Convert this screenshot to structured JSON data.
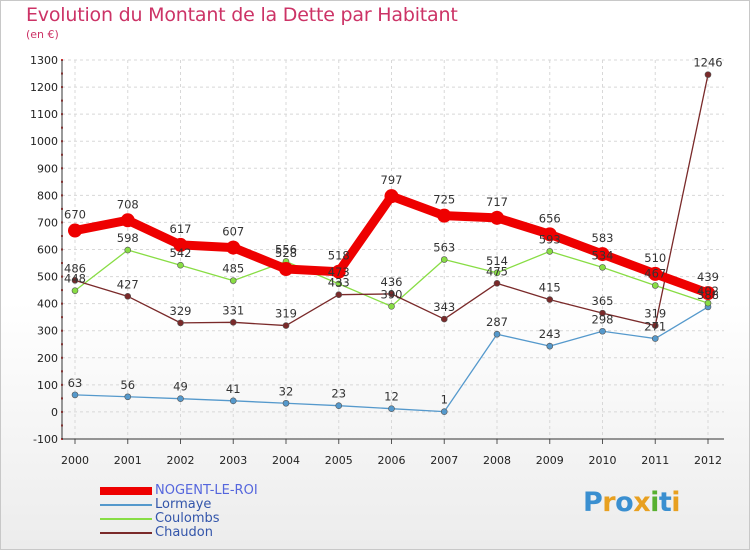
{
  "title": "Evolution du Montant de la Dette par Habitant",
  "subtitle": "(en €)",
  "logo": {
    "letters": [
      "P",
      "r",
      "o",
      "x",
      "i",
      "t",
      "i"
    ],
    "colors": [
      "#3a8fd0",
      "#e8a020",
      "#3a8fd0",
      "#e8a020",
      "#58b030",
      "#3a8fd0",
      "#e8a020"
    ]
  },
  "chart_data": {
    "type": "line",
    "x": [
      "2000",
      "2001",
      "2002",
      "2003",
      "2004",
      "2005",
      "2006",
      "2007",
      "2008",
      "2009",
      "2010",
      "2011",
      "2012"
    ],
    "ylim": [
      -100,
      1300
    ],
    "yticks": [
      "-100",
      "0",
      "100",
      "200",
      "300",
      "400",
      "500",
      "600",
      "700",
      "800",
      "900",
      "1000",
      "1100",
      "1200",
      "1300"
    ],
    "grid": true,
    "legend_position": "bottom-left",
    "series": [
      {
        "name": "NOGENT-LE-ROI",
        "color": "#ee0000",
        "bold": true,
        "values": [
          670,
          708,
          617,
          607,
          528,
          518,
          797,
          725,
          717,
          656,
          583,
          510,
          439
        ],
        "labels": [
          "670",
          "708",
          "617",
          "607",
          "528",
          "518",
          "797",
          "725",
          "717",
          "656",
          "583",
          "510",
          "439"
        ]
      },
      {
        "name": "Lormaye",
        "color": "#5599cc",
        "values": [
          63,
          56,
          49,
          41,
          32,
          23,
          12,
          1,
          287,
          243,
          298,
          271,
          388
        ],
        "labels": [
          "63",
          "56",
          "49",
          "41",
          "32",
          "23",
          "12",
          "1",
          "287",
          "243",
          "298",
          "271",
          "388"
        ]
      },
      {
        "name": "Coulombs",
        "color": "#88dd44",
        "values": [
          448,
          598,
          542,
          485,
          556,
          473,
          390,
          563,
          514,
          593,
          534,
          467,
          402
        ],
        "labels": [
          "448",
          "598",
          "542",
          "485",
          "556",
          "473",
          "390",
          "563",
          "514",
          "593",
          "534",
          "467",
          "402"
        ]
      },
      {
        "name": "Chaudon",
        "color": "#7a2a2a",
        "values": [
          486,
          427,
          329,
          331,
          319,
          433,
          436,
          343,
          475,
          415,
          365,
          319,
          1246
        ],
        "labels": [
          "486",
          "427",
          "329",
          "331",
          "319",
          "433",
          "436",
          "343",
          "475",
          "415",
          "365",
          "319",
          "1246"
        ]
      }
    ]
  }
}
